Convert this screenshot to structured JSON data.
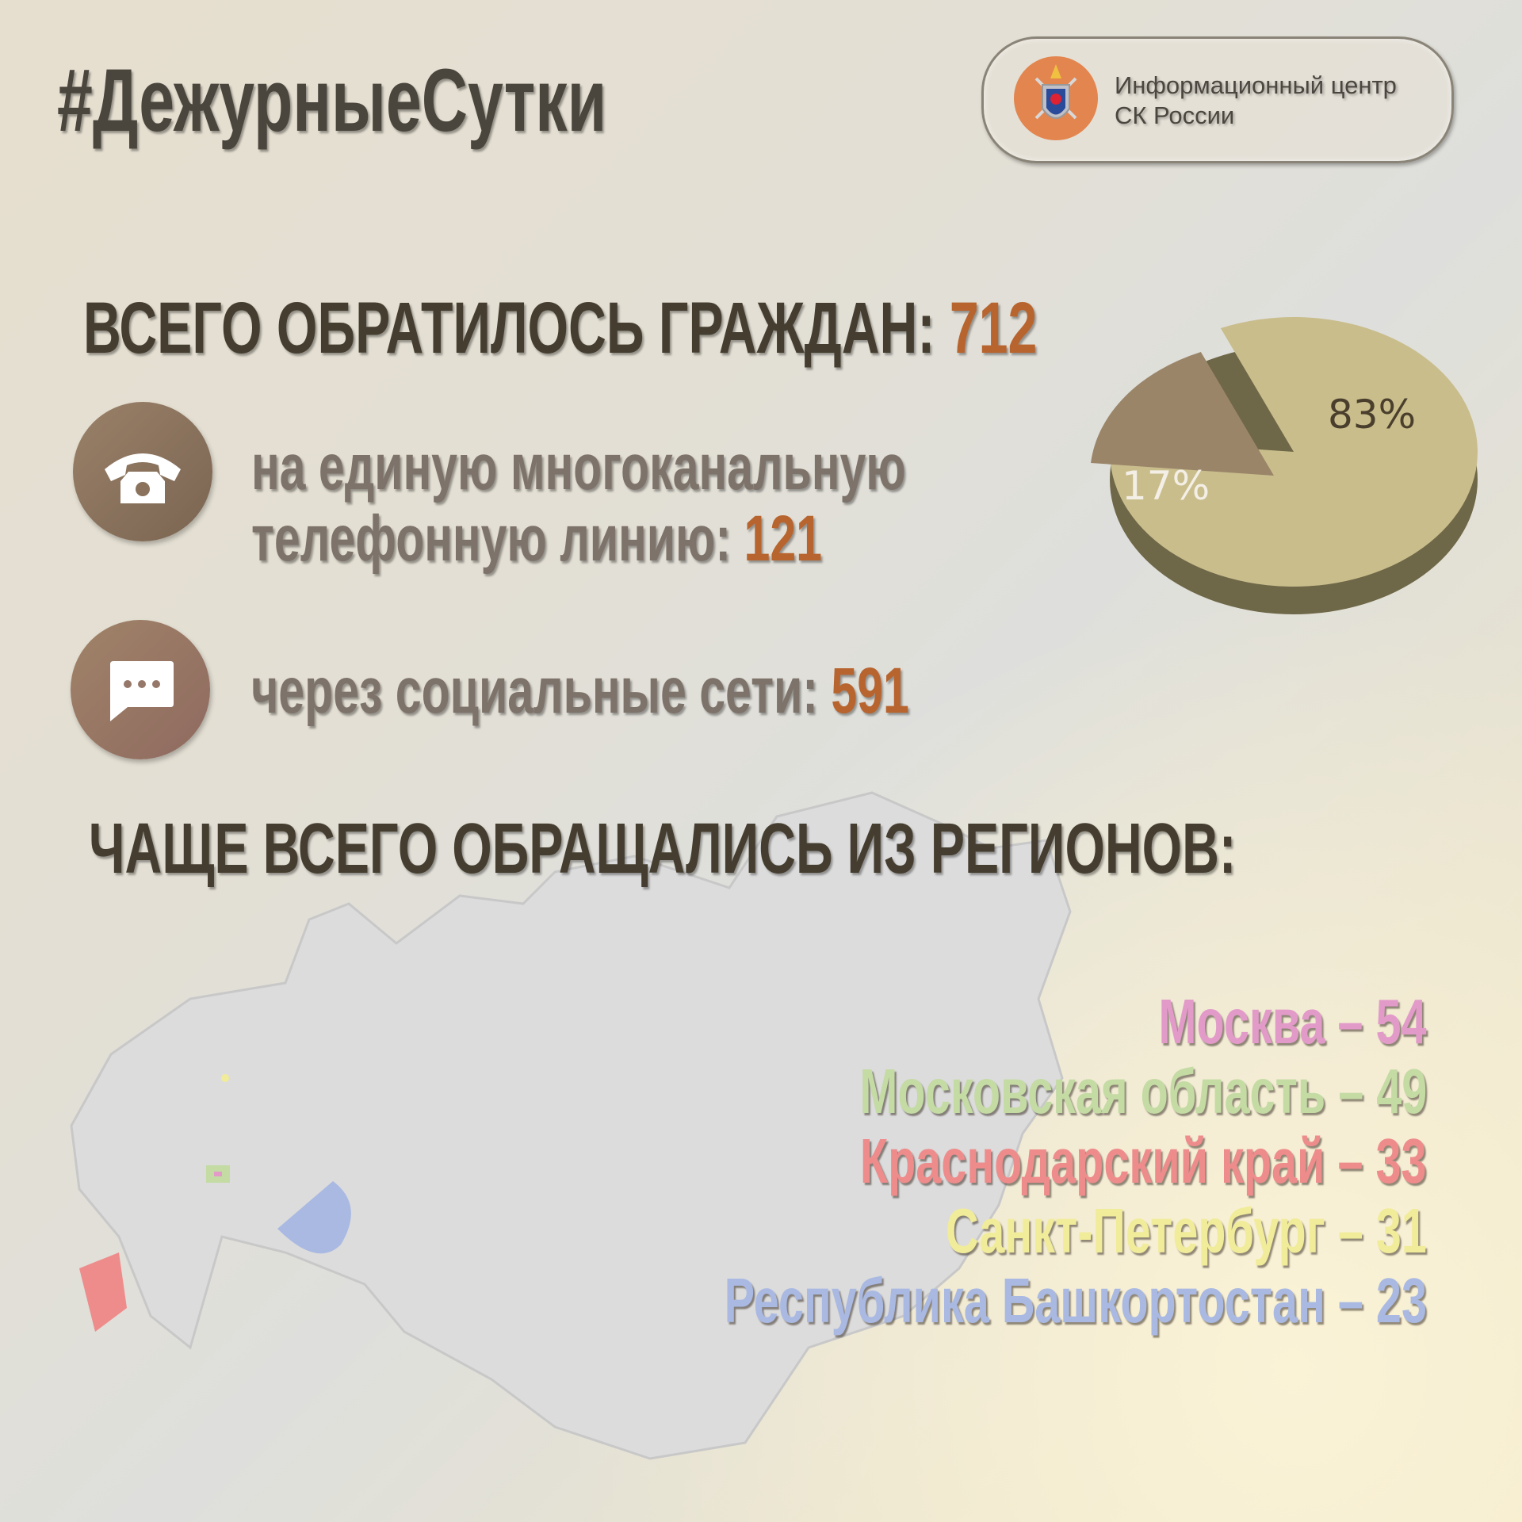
{
  "header": {
    "title": "#ДежурныеСутки",
    "logo_text_line1": "Информационный центр",
    "logo_text_line2": "СК России",
    "logo_icon": "sk-russia-emblem-icon"
  },
  "total": {
    "label": "ВСЕГО ОБРАТИЛОСЬ ГРАЖДАН: ",
    "value": "712"
  },
  "phone": {
    "icon": "phone-icon",
    "line1": "на единую многоканальную",
    "line2": "телефонную линию: ",
    "value": "121"
  },
  "social": {
    "icon": "chat-bubble-icon",
    "label": "через социальные сети: ",
    "value": "591"
  },
  "chart_data": {
    "type": "pie",
    "values": [
      83,
      17
    ],
    "labels": [
      "83%",
      "17%"
    ],
    "colors": [
      "#c9bd8c",
      "#9a8569"
    ]
  },
  "regions": {
    "title": "ЧАЩЕ ВСЕГО ОБРАЩАЛИСЬ ИЗ РЕГИОНОВ:",
    "items": [
      {
        "text": "Москва – 54",
        "color": "#e29bc9"
      },
      {
        "text": "Московская область – 49",
        "color": "#c4dba4"
      },
      {
        "text": "Краснодарский край – 33",
        "color": "#ee8c8c"
      },
      {
        "text": "Санкт-Петербург  – 31",
        "color": "#f1ec9a"
      },
      {
        "text": "Республика Башкортостан – 23",
        "color": "#a9b9e2"
      }
    ]
  },
  "colors": {
    "accent": "#b8642e",
    "map": "#dcdcdc"
  }
}
